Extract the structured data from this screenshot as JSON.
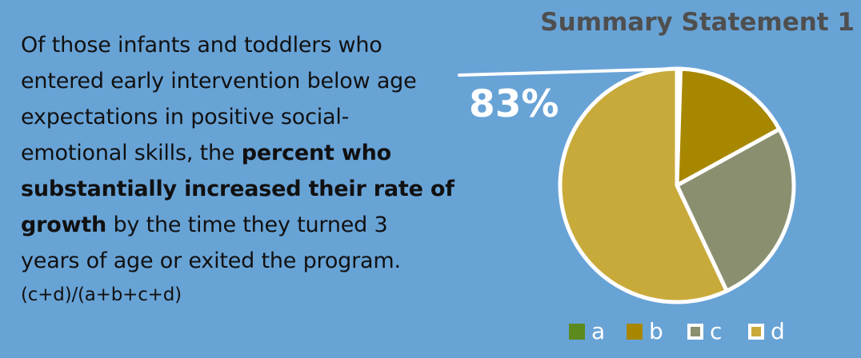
{
  "text": {
    "p1_line1": "Of those infants and toddlers who",
    "p1_line2": "entered early intervention below age",
    "p1_line3": "expectations in positive social-",
    "p1_line4_pre": "emotional skills, the ",
    "p1_line4_bold": "percent who",
    "p1_line5_bold": "substantially increased their rate of",
    "p1_line6_bold": "growth",
    "p1_line6_post": " by the time they turned 3",
    "p1_line7": "years of age or exited the program.",
    "formula": "(c+d)/(a+b+c+d)"
  },
  "chart_data": {
    "type": "pie",
    "title": "Summary Statement 1",
    "callout": "83%",
    "categories": [
      "a",
      "b",
      "c",
      "d"
    ],
    "values": [
      0.5,
      16.5,
      26,
      57
    ],
    "colors": {
      "a": "#5c8a1f",
      "b": "#a88700",
      "c": "#8a906f",
      "d": "#c8aa3b"
    },
    "legend_position": "bottom",
    "legend_outline_categories": [
      "c",
      "d"
    ]
  }
}
